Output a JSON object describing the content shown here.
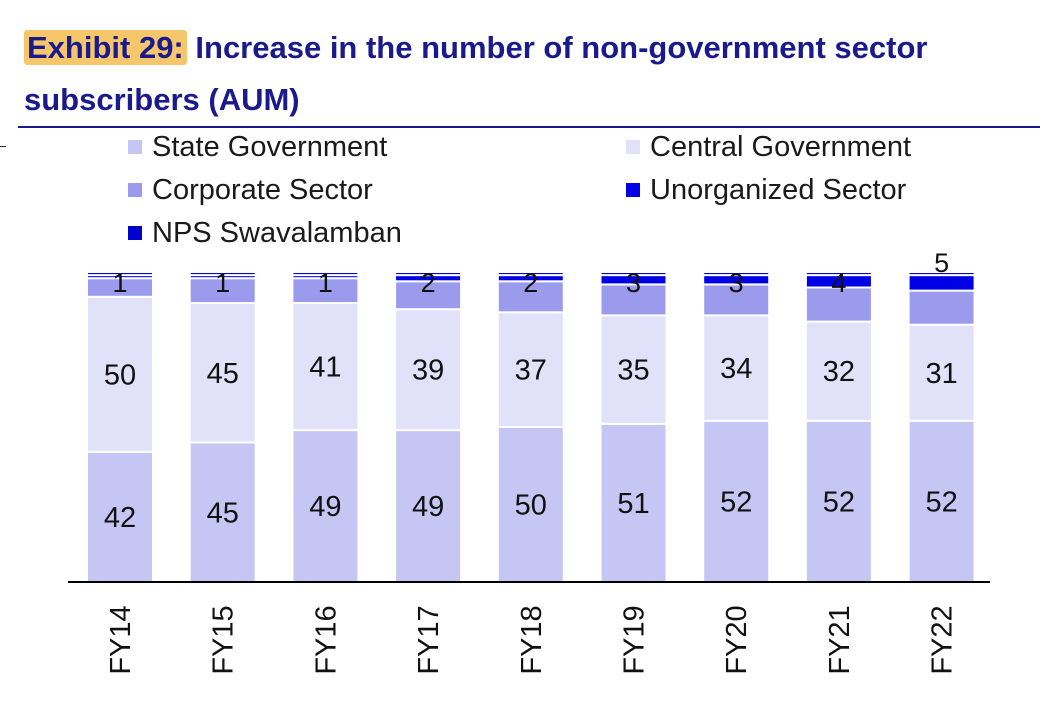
{
  "header": {
    "exhibit_label": "Exhibit 29:",
    "title_text": "Increase in the number of non-government sector subscribers (AUM)"
  },
  "colors": {
    "title": "#1a1a8c",
    "exhibit_highlight": "#f6c66b",
    "state_government": "#c6c6f4",
    "central_government": "#e1e1fa",
    "corporate_sector": "#9b9bee",
    "unorganized_sector": "#0000e6",
    "nps_swavalamban": "#0000cc"
  },
  "legend": {
    "state_government": "State Government",
    "central_government": "Central Government",
    "corporate_sector": "Corporate Sector",
    "unorganized_sector": "Unorganized Sector",
    "nps_swavalamban": "NPS Swavalamban"
  },
  "chart_data": {
    "type": "bar",
    "stacked": true,
    "title": "Increase in the number of non-government sector subscribers (AUM)",
    "categories": [
      "FY14",
      "FY15",
      "FY16",
      "FY17",
      "FY18",
      "FY19",
      "FY20",
      "FY21",
      "FY22"
    ],
    "series": [
      {
        "name": "State Government",
        "values": [
          42,
          45,
          49,
          49,
          50,
          51,
          52,
          52,
          52
        ],
        "labeled": true
      },
      {
        "name": "Central Government",
        "values": [
          50,
          45,
          41,
          39,
          37,
          35,
          34,
          32,
          31
        ],
        "labeled": true
      },
      {
        "name": "Corporate Sector",
        "values": [
          6,
          8,
          8,
          9,
          10,
          10,
          10,
          11,
          11
        ],
        "labeled": false
      },
      {
        "name": "Unorganized Sector",
        "values": [
          1,
          1,
          1,
          2,
          2,
          3,
          3,
          4,
          5
        ],
        "labeled": true
      },
      {
        "name": "NPS Swavalamban",
        "values": [
          1,
          1,
          1,
          1,
          1,
          1,
          1,
          1,
          1
        ],
        "labeled": false
      }
    ],
    "ylim": [
      0,
      100
    ],
    "xlabel": "",
    "ylabel": "",
    "grid": false,
    "legend_position": "top"
  }
}
